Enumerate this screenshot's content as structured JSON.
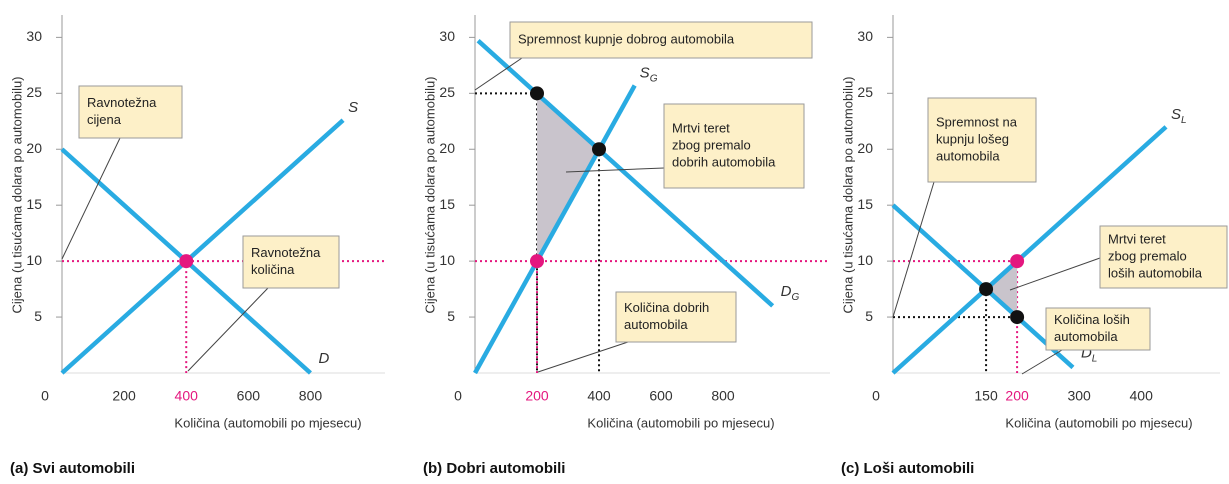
{
  "chart_data": [
    {
      "type": "line",
      "caption": "(a) Svi automobili",
      "xlabel": "Količina (automobili po mjesecu)",
      "ylabel": "Cijena (u tisućama dolara po automobilu)",
      "xlim": [
        0,
        1040
      ],
      "ylim": [
        0,
        32
      ],
      "xticks": [
        0,
        200,
        400,
        600,
        800
      ],
      "xtick_colors": [
        "#333",
        "#333",
        "#e4177f",
        "#333",
        "#333"
      ],
      "yticks": [
        5,
        10,
        15,
        20,
        25,
        30
      ],
      "series": [
        {
          "name": "S",
          "color": "#29abe2",
          "x": [
            0,
            905
          ],
          "values": [
            0,
            22.6
          ]
        },
        {
          "name": "D",
          "color": "#29abe2",
          "x": [
            0,
            800
          ],
          "values": [
            20,
            0
          ]
        }
      ],
      "points": {
        "x": [
          400
        ],
        "values": [
          10
        ],
        "colors": [
          "#e4177f"
        ]
      },
      "annotations": [
        {
          "lines": [
            "Ravnotežna",
            "cijena"
          ]
        },
        {
          "lines": [
            "Ravnotežna",
            "količina"
          ]
        }
      ]
    },
    {
      "type": "line",
      "caption": "(b) Dobri automobili",
      "xlabel": "Količina (automobili po mjesecu)",
      "ylabel": "Cijena (u tisućama dolara po automobilu)",
      "xlim": [
        0,
        1145
      ],
      "ylim": [
        0,
        32
      ],
      "xticks": [
        0,
        200,
        400,
        600,
        800
      ],
      "xtick_colors": [
        "#333",
        "#e4177f",
        "#333",
        "#333",
        "#333"
      ],
      "yticks": [
        5,
        10,
        15,
        20,
        25,
        30
      ],
      "series": [
        {
          "name": "SG",
          "color": "#29abe2",
          "x": [
            0,
            515
          ],
          "values": [
            0,
            25.7
          ]
        },
        {
          "name": "DG",
          "color": "#29abe2",
          "x": [
            10,
            960
          ],
          "values": [
            29.7,
            6
          ]
        }
      ],
      "points": {
        "x": [
          200,
          400,
          200
        ],
        "values": [
          25,
          20,
          10
        ],
        "colors": [
          "#111",
          "#111",
          "#e4177f"
        ]
      },
      "deadweight": {
        "color": "#c9c4cc",
        "x": [
          200,
          400,
          200
        ],
        "values": [
          25,
          20,
          10
        ]
      },
      "annotations": [
        {
          "lines": [
            "Spremnost kupnje dobrog automobila"
          ]
        },
        {
          "lines": [
            "Mrtvi teret",
            "zbog premalo",
            "dobrih automobila"
          ]
        },
        {
          "lines": [
            "Količina dobrih",
            "automobila"
          ]
        }
      ]
    },
    {
      "type": "line",
      "caption": "(c) Loši automobili",
      "xlabel": "Količina (automobili po mjesecu)",
      "ylabel": "Cijena (u tisućama dolara po automobilu)",
      "xlim": [
        0,
        527
      ],
      "ylim": [
        0,
        32
      ],
      "xticks": [
        0,
        150,
        200,
        300,
        400
      ],
      "xtick_colors": [
        "#333",
        "#333",
        "#e4177f",
        "#333",
        "#333"
      ],
      "yticks": [
        5,
        10,
        15,
        20,
        25,
        30
      ],
      "series": [
        {
          "name": "SL",
          "color": "#29abe2",
          "x": [
            0,
            440
          ],
          "values": [
            0,
            22
          ]
        },
        {
          "name": "DL",
          "color": "#29abe2",
          "x": [
            0,
            290
          ],
          "values": [
            15,
            0.5
          ]
        }
      ],
      "points": {
        "x": [
          150,
          200,
          200
        ],
        "values": [
          7.5,
          10,
          5
        ],
        "colors": [
          "#111",
          "#e4177f",
          "#111"
        ]
      },
      "deadweight": {
        "color": "#c9c4cc",
        "x": [
          150,
          200,
          200
        ],
        "values": [
          7.5,
          10,
          5
        ]
      },
      "annotations": [
        {
          "lines": [
            "Spremnost na",
            "kupnju lošeg",
            "automobila"
          ]
        },
        {
          "lines": [
            "Mrtvi teret",
            "zbog premalo",
            "loših automobila"
          ]
        },
        {
          "lines": [
            "Količina loših",
            "automobila"
          ]
        }
      ]
    }
  ]
}
